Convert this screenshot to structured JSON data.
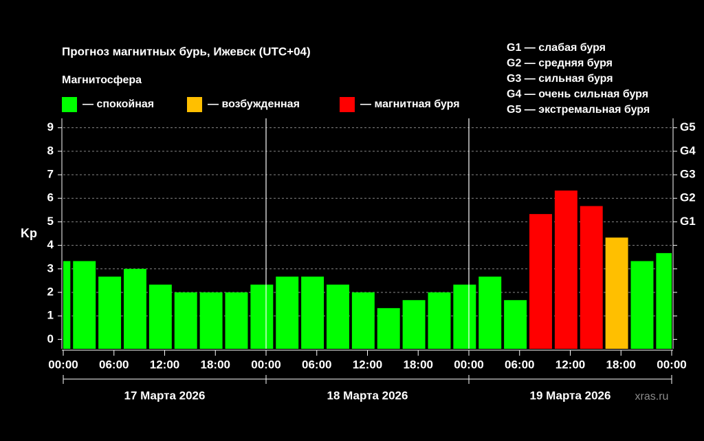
{
  "chart_data": {
    "type": "bar",
    "title": "Прогноз магнитных бурь, Ижевск (UTC+04)",
    "legend_title": "Магнитосфера",
    "legend": [
      {
        "label": "— спокойная",
        "color": "#00ff00"
      },
      {
        "label": "— возбужденная",
        "color": "#ffbf00"
      },
      {
        "label": "— магнитная буря",
        "color": "#ff0000"
      }
    ],
    "storm_scale": [
      "G1 — слабая буря",
      "G2 — средняя буря",
      "G3 — сильная буря",
      "G4 — очень сильная буря",
      "G5 — экстремальная буря"
    ],
    "ylabel": "Kp",
    "x": [
      -0.5,
      2.5,
      5.5,
      8.5,
      11.5,
      14.5,
      17.5,
      20.5,
      23.5,
      26.5,
      29.5,
      32.5,
      35.5,
      38.5,
      41.5,
      44.5,
      47.5,
      50.5,
      53.5,
      56.5,
      59.5,
      62.5,
      65.5,
      68.5,
      71.5
    ],
    "values": [
      3.33,
      3.33,
      2.67,
      3,
      2.33,
      2,
      2,
      2,
      2.33,
      2.67,
      2.67,
      2.33,
      2,
      1.33,
      1.67,
      2,
      2.33,
      2.67,
      1.67,
      5.33,
      6.33,
      5.67,
      4.33,
      3.33,
      3.67
    ],
    "colors": [
      "#00ff00",
      "#00ff00",
      "#00ff00",
      "#00ff00",
      "#00ff00",
      "#00ff00",
      "#00ff00",
      "#00ff00",
      "#00ff00",
      "#00ff00",
      "#00ff00",
      "#00ff00",
      "#00ff00",
      "#00ff00",
      "#00ff00",
      "#00ff00",
      "#00ff00",
      "#00ff00",
      "#00ff00",
      "#ff0000",
      "#ff0000",
      "#ff0000",
      "#ffbf00",
      "#00ff00",
      "#00ff00"
    ],
    "xlim": [
      0,
      72
    ],
    "xticks": [
      {
        "value": 0,
        "label": "00:00"
      },
      {
        "value": 6,
        "label": "06:00"
      },
      {
        "value": 12,
        "label": "12:00"
      },
      {
        "value": 18,
        "label": "18:00"
      },
      {
        "value": 24,
        "label": "00:00"
      },
      {
        "value": 30,
        "label": "06:00"
      },
      {
        "value": 36,
        "label": "12:00"
      },
      {
        "value": 42,
        "label": "18:00"
      },
      {
        "value": 48,
        "label": "00:00"
      },
      {
        "value": 54,
        "label": "06:00"
      },
      {
        "value": 60,
        "label": "12:00"
      },
      {
        "value": 66,
        "label": "18:00"
      },
      {
        "value": 72,
        "label": "00:00"
      }
    ],
    "day_lines": [
      24,
      48
    ],
    "day_labels": [
      "17 Марта 2026",
      "18 Марта 2026",
      "19 Марта 2026"
    ],
    "ylim": [
      -0.4,
      9.4
    ],
    "yticks": [
      0,
      1,
      2,
      3,
      4,
      5,
      6,
      7,
      8,
      9
    ],
    "y2ticks": [
      {
        "value": 5,
        "label": "G1"
      },
      {
        "value": 6,
        "label": "G2"
      },
      {
        "value": 7,
        "label": "G3"
      },
      {
        "value": 8,
        "label": "G4"
      },
      {
        "value": 9,
        "label": "G5"
      }
    ],
    "grid": true,
    "watermark": "xras.ru"
  }
}
